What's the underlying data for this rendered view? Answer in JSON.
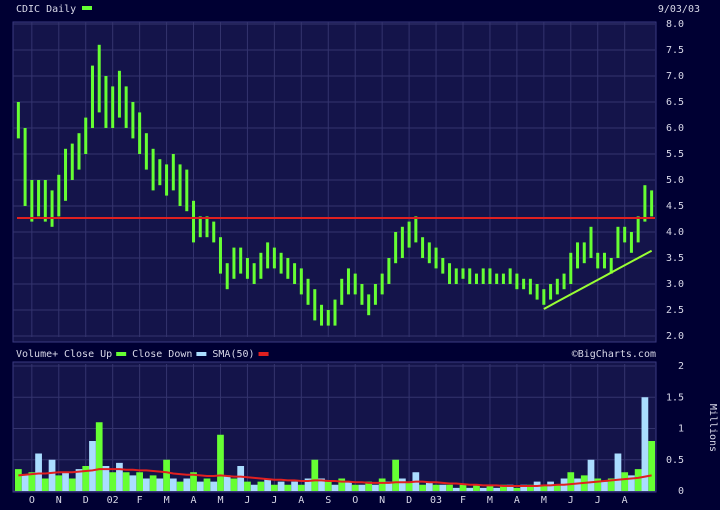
{
  "chart_data": [
    {
      "type": "price-bars",
      "title": "CDIC Daily",
      "date": "9/03/03",
      "ylim": [
        2,
        8
      ],
      "yticks": [
        {
          "value": 2,
          "label": "2.0"
        },
        2.5,
        {
          "value": 3,
          "label": "3.0"
        },
        3.5,
        {
          "value": 4,
          "label": "4.0"
        },
        4.5,
        {
          "value": 5,
          "label": "5.0"
        },
        5.5,
        {
          "value": 6,
          "label": "6.0"
        },
        6.5,
        {
          "value": 7,
          "label": "7.0"
        },
        7.5,
        {
          "value": 8,
          "label": "8.0"
        }
      ],
      "grid": true,
      "series": [
        {
          "name": "CDIC Daily",
          "color": "#66ff33",
          "high": [
            6.5,
            6.0,
            5.0,
            5.0,
            5.0,
            4.8,
            5.1,
            5.6,
            5.7,
            5.9,
            6.2,
            7.2,
            7.6,
            7.0,
            6.8,
            7.1,
            6.8,
            6.5,
            6.3,
            5.9,
            5.6,
            5.4,
            5.3,
            5.5,
            5.3,
            5.2,
            4.6,
            4.3,
            4.3,
            4.2,
            3.9,
            3.4,
            3.7,
            3.7,
            3.5,
            3.4,
            3.6,
            3.8,
            3.7,
            3.6,
            3.5,
            3.4,
            3.3,
            3.1,
            2.9,
            2.6,
            2.5,
            2.7,
            3.1,
            3.3,
            3.2,
            3.0,
            2.8,
            3.0,
            3.2,
            3.5,
            4.0,
            4.1,
            4.2,
            4.3,
            3.9,
            3.8,
            3.7,
            3.5,
            3.4,
            3.3,
            3.3,
            3.3,
            3.2,
            3.3,
            3.3,
            3.2,
            3.2,
            3.3,
            3.2,
            3.1,
            3.1,
            3.0,
            2.9,
            3.0,
            3.1,
            3.2,
            3.6,
            3.8,
            3.8,
            4.1,
            3.6,
            3.6,
            3.5,
            4.1,
            4.1,
            4.0,
            4.3,
            4.9,
            4.8
          ],
          "low": [
            5.8,
            4.5,
            4.2,
            4.3,
            4.2,
            4.1,
            4.3,
            4.6,
            5.0,
            5.2,
            5.5,
            6.0,
            6.3,
            6.0,
            6.0,
            6.2,
            6.0,
            5.8,
            5.5,
            5.2,
            4.8,
            4.9,
            4.7,
            4.8,
            4.5,
            4.4,
            3.8,
            3.9,
            3.9,
            3.8,
            3.2,
            2.9,
            3.1,
            3.2,
            3.1,
            3.0,
            3.1,
            3.3,
            3.3,
            3.2,
            3.1,
            3.0,
            2.8,
            2.6,
            2.3,
            2.2,
            2.2,
            2.2,
            2.6,
            2.8,
            2.8,
            2.6,
            2.4,
            2.6,
            2.8,
            3.0,
            3.4,
            3.5,
            3.7,
            3.8,
            3.5,
            3.4,
            3.3,
            3.2,
            3.0,
            3.0,
            3.1,
            3.0,
            3.0,
            3.0,
            3.0,
            3.0,
            3.0,
            3.0,
            2.9,
            2.9,
            2.8,
            2.7,
            2.6,
            2.7,
            2.8,
            2.9,
            3.0,
            3.3,
            3.4,
            3.5,
            3.3,
            3.3,
            3.2,
            3.5,
            3.8,
            3.6,
            3.8,
            4.2,
            4.3
          ]
        },
        {
          "color": "#99ff33",
          "values": [
            null,
            null,
            null,
            null,
            null,
            null,
            null,
            null,
            null,
            null,
            null,
            null,
            null,
            null,
            null,
            null,
            null,
            null,
            null,
            null,
            null,
            null,
            null,
            null,
            null,
            null,
            null,
            null,
            null,
            null,
            null,
            null,
            null,
            null,
            null,
            null,
            null,
            null,
            null,
            null,
            null,
            null,
            null,
            null,
            null,
            null,
            null,
            null,
            null,
            null,
            null,
            null,
            null,
            null,
            null,
            null,
            null,
            null,
            null,
            null,
            null,
            null,
            null,
            null,
            null,
            null,
            null,
            null,
            null,
            null,
            null,
            null,
            null,
            null,
            null,
            null,
            null,
            null,
            2.52,
            2.59,
            2.66,
            2.73,
            2.8,
            2.87,
            2.94,
            3.01,
            3.08,
            3.15,
            3.22,
            3.29,
            3.36,
            3.43,
            3.5,
            3.57,
            3.64
          ]
        }
      ],
      "hline": 4.27,
      "hline_color": "#e02020"
    },
    {
      "type": "volume",
      "title": "Volume+",
      "credit": "©BigCharts.com",
      "y_label": "Millions",
      "ylim": [
        0,
        2
      ],
      "yticks": [
        0,
        0.5,
        1,
        1.5,
        2
      ],
      "grid": true,
      "categories": [
        null,
        null,
        "O",
        null,
        null,
        null,
        "N",
        null,
        null,
        null,
        "D",
        null,
        null,
        null,
        "02",
        null,
        null,
        null,
        "F",
        null,
        null,
        null,
        "M",
        null,
        null,
        null,
        "A",
        null,
        null,
        null,
        "M",
        null,
        null,
        null,
        "J",
        null,
        null,
        null,
        "J",
        null,
        null,
        null,
        "A",
        null,
        null,
        null,
        "S",
        null,
        null,
        null,
        "O",
        null,
        null,
        null,
        "N",
        null,
        null,
        null,
        "D",
        null,
        null,
        null,
        "03",
        null,
        null,
        null,
        "F",
        null,
        null,
        null,
        "M",
        null,
        null,
        null,
        "A",
        null,
        null,
        null,
        "M",
        null,
        null,
        null,
        "J",
        null,
        null,
        null,
        "J",
        null,
        null,
        null,
        "A",
        null,
        null,
        null,
        null
      ],
      "series": [
        {
          "name": "Close Up",
          "color": "#66ff33",
          "values": [
            0.35,
            null,
            0.3,
            null,
            0.2,
            null,
            0.25,
            null,
            0.2,
            null,
            0.4,
            null,
            1.1,
            null,
            0.3,
            null,
            0.3,
            null,
            0.3,
            null,
            0.25,
            null,
            0.5,
            null,
            0.15,
            null,
            0.3,
            null,
            0.2,
            null,
            0.9,
            null,
            0.2,
            null,
            0.15,
            null,
            0.15,
            null,
            0.1,
            null,
            0.1,
            null,
            0.1,
            null,
            0.5,
            null,
            0.15,
            null,
            0.2,
            null,
            0.1,
            null,
            0.15,
            null,
            0.2,
            null,
            0.5,
            null,
            0.15,
            null,
            0.1,
            null,
            0.1,
            null,
            0.1,
            null,
            0.1,
            null,
            0.1,
            null,
            0.1,
            null,
            0.1,
            null,
            0.05,
            null,
            0.1,
            null,
            0.1,
            null,
            0.1,
            null,
            0.3,
            null,
            0.25,
            null,
            0.2,
            null,
            0.2,
            null,
            0.3,
            null,
            0.35,
            null,
            0.8
          ]
        },
        {
          "name": "Close Down",
          "color": "#aaddff",
          "values": [
            null,
            0.25,
            null,
            0.6,
            null,
            0.5,
            null,
            0.3,
            null,
            0.35,
            null,
            0.8,
            null,
            0.4,
            null,
            0.45,
            null,
            0.25,
            null,
            0.2,
            null,
            0.2,
            null,
            0.2,
            null,
            0.2,
            null,
            0.15,
            null,
            0.15,
            null,
            0.25,
            null,
            0.4,
            null,
            0.1,
            null,
            0.2,
            null,
            0.15,
            null,
            0.15,
            null,
            0.2,
            null,
            0.2,
            null,
            0.1,
            null,
            0.15,
            null,
            0.1,
            null,
            0.1,
            null,
            0.15,
            null,
            0.2,
            null,
            0.3,
            null,
            0.15,
            null,
            0.1,
            null,
            0.05,
            null,
            0.05,
            null,
            0.05,
            null,
            0.05,
            null,
            0.1,
            null,
            0.1,
            null,
            0.15,
            null,
            0.15,
            null,
            0.2,
            null,
            0.2,
            null,
            0.5,
            null,
            0.15,
            null,
            0.6,
            null,
            0.25,
            null,
            1.5,
            null
          ]
        },
        {
          "name": "SMA(50)",
          "color": "#e02020",
          "line": true,
          "values": [
            0.25,
            0.26,
            0.27,
            0.28,
            0.28,
            0.29,
            0.3,
            0.3,
            0.3,
            0.31,
            0.32,
            0.33,
            0.35,
            0.35,
            0.35,
            0.35,
            0.34,
            0.34,
            0.33,
            0.33,
            0.32,
            0.31,
            0.3,
            0.28,
            0.27,
            0.26,
            0.26,
            0.25,
            0.24,
            0.24,
            0.25,
            0.24,
            0.23,
            0.23,
            0.22,
            0.21,
            0.2,
            0.19,
            0.18,
            0.18,
            0.17,
            0.17,
            0.16,
            0.16,
            0.17,
            0.17,
            0.16,
            0.16,
            0.15,
            0.15,
            0.14,
            0.14,
            0.13,
            0.13,
            0.13,
            0.13,
            0.14,
            0.14,
            0.14,
            0.15,
            0.15,
            0.14,
            0.14,
            0.13,
            0.12,
            0.12,
            0.11,
            0.1,
            0.1,
            0.09,
            0.09,
            0.09,
            0.08,
            0.08,
            0.08,
            0.08,
            0.08,
            0.08,
            0.09,
            0.09,
            0.1,
            0.1,
            0.11,
            0.12,
            0.13,
            0.14,
            0.15,
            0.16,
            0.17,
            0.18,
            0.19,
            0.2,
            0.21,
            0.23,
            0.25
          ]
        }
      ]
    }
  ]
}
